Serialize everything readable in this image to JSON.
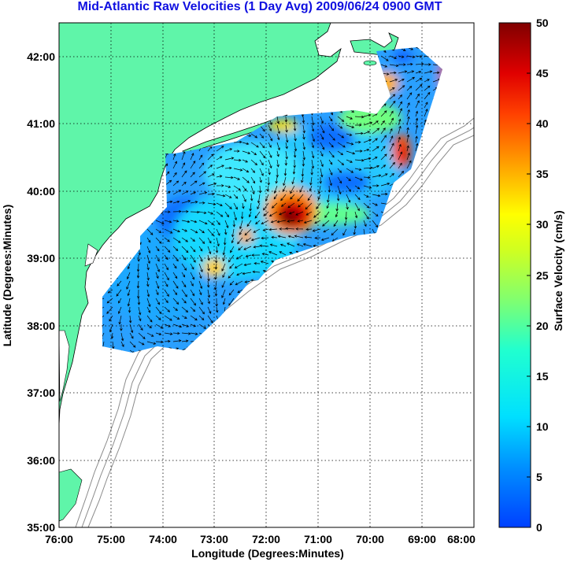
{
  "title": "Mid-Atlantic Raw Velocities (1 Day Avg) 2009/06/24 0900 GMT",
  "xlabel": "Longitude (Degrees:Minutes)",
  "ylabel": "Latitude (Degrees:Minutes)",
  "colorbar_label": "Surface Velocity (cm/s)",
  "x_ticks": [
    "76:00",
    "75:00",
    "74:00",
    "73:00",
    "72:00",
    "71:00",
    "70:00",
    "69:00",
    "68:00"
  ],
  "y_ticks": [
    "42:00",
    "41:00",
    "40:00",
    "39:00",
    "38:00",
    "37:00",
    "36:00",
    "35:00"
  ],
  "colorbar_ticks": [
    "50",
    "45",
    "40",
    "35",
    "30",
    "25",
    "20",
    "15",
    "10",
    "5",
    "0"
  ],
  "colors": {
    "land": "#5ff5a9",
    "title": "#1010e0",
    "bathymetry": "#8a8a8a",
    "colormap": "jet"
  },
  "chart_data": {
    "type": "heatmap",
    "xlim": [
      -76,
      -68
    ],
    "ylim": [
      35,
      42.5
    ],
    "clim": [
      0,
      50
    ],
    "units": "cm/s",
    "hotspots": [
      {
        "lon": -71.5,
        "lat": 39.6,
        "speed": 50
      },
      {
        "lon": -69.2,
        "lat": 40.4,
        "speed": 40
      },
      {
        "lon": -68.6,
        "lat": 41.6,
        "speed": 40
      },
      {
        "lon": -69.9,
        "lat": 41.6,
        "speed": 30
      },
      {
        "lon": -72.9,
        "lat": 38.8,
        "speed": 28
      }
    ]
  }
}
